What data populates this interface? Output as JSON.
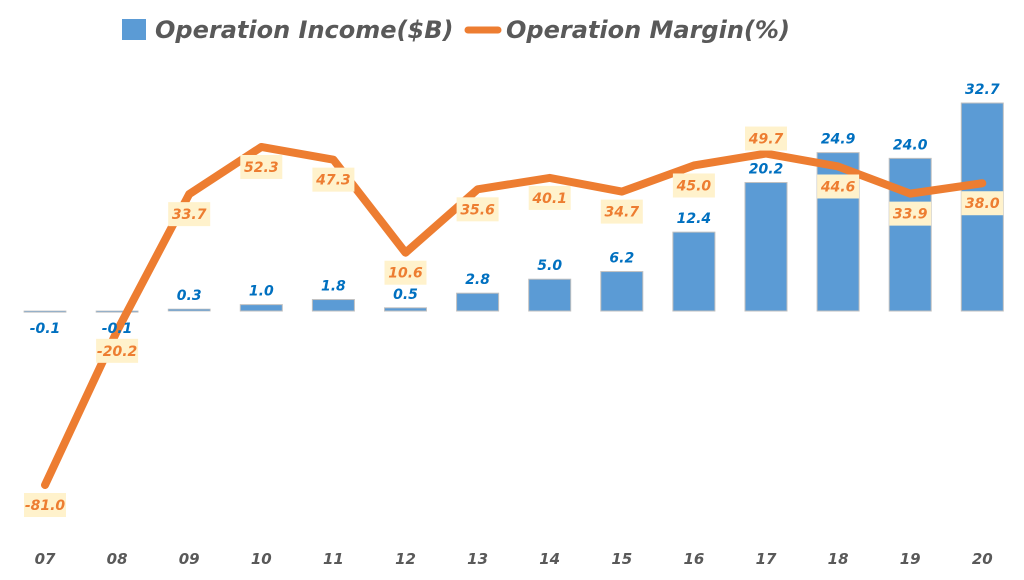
{
  "chart_data": {
    "type": "bar+line",
    "categories": [
      "07",
      "08",
      "09",
      "10",
      "11",
      "12",
      "13",
      "14",
      "15",
      "16",
      "17",
      "18",
      "19",
      "20"
    ],
    "series": [
      {
        "name": "Operation Income($B)",
        "type": "bar",
        "axis": "primary",
        "color": "#5b9bd5",
        "values": [
          -0.1,
          -0.1,
          0.3,
          1.0,
          1.8,
          0.5,
          2.8,
          5.0,
          6.2,
          12.4,
          20.2,
          24.9,
          24.0,
          32.7
        ],
        "labels": [
          "-0.1",
          "-0.1",
          "0.3",
          "1.0",
          "1.8",
          "0.5",
          "2.8",
          "5.0",
          "6.2",
          "12.4",
          "20.2",
          "24.9",
          "24.0",
          "32.7"
        ]
      },
      {
        "name": "Operation Margin(%)",
        "type": "line",
        "axis": "secondary",
        "color": "#ed7d31",
        "values": [
          -81.0,
          -20.2,
          33.7,
          52.3,
          47.3,
          10.6,
          35.6,
          40.1,
          34.7,
          45.0,
          49.7,
          44.6,
          33.9,
          38.0
        ],
        "labels": [
          "-81.0",
          "-20.2",
          "33.7",
          "52.3",
          "47.3",
          "10.6",
          "35.6",
          "40.1",
          "34.7",
          "45.0",
          "49.7",
          "44.6",
          "33.9",
          "38.0"
        ]
      }
    ],
    "legend": "top",
    "grid": false,
    "label_colors": {
      "bar_label": "#0070c0",
      "line_label": "#ed7d31",
      "line_label_bg": "#fff2cc"
    }
  }
}
